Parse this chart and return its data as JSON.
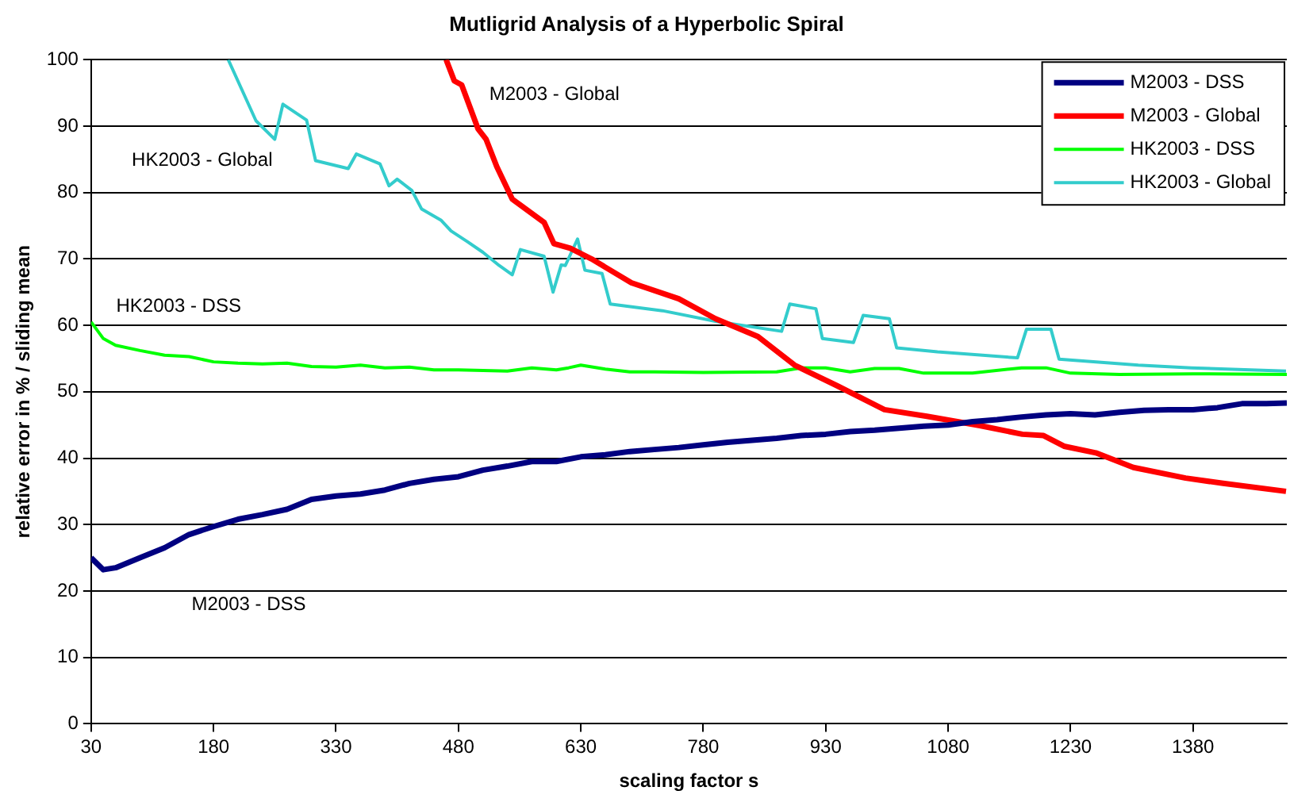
{
  "chart_data": {
    "type": "line",
    "title": "Mutligrid Analysis of a Hyperbolic Spiral",
    "xlabel": "scaling factor s",
    "ylabel": "relative error in % / sliding mean",
    "xlim": [
      30,
      1495
    ],
    "xticks": [
      30,
      180,
      330,
      480,
      630,
      780,
      930,
      1080,
      1230,
      1380
    ],
    "ylim": [
      0,
      100
    ],
    "yticks": [
      0,
      10,
      20,
      30,
      40,
      50,
      60,
      70,
      80,
      90,
      100
    ],
    "grid": "y",
    "legend": "top right",
    "marker": "none",
    "line_style": "solid",
    "annotations": [
      "M2003 - Global",
      "HK2003 - Global",
      "HK2003 - DSS",
      "M2003 - DSS"
    ],
    "series": [
      {
        "name": "M2003 - DSS",
        "color": "#000080",
        "x": [
          30,
          45,
          60,
          90,
          120,
          150,
          180,
          210,
          240,
          270,
          300,
          330,
          360,
          390,
          420,
          450,
          480,
          510,
          540,
          570,
          600,
          630,
          660,
          690,
          720,
          750,
          780,
          810,
          840,
          870,
          900,
          930,
          960,
          990,
          1020,
          1050,
          1080,
          1110,
          1140,
          1170,
          1200,
          1230,
          1260,
          1290,
          1320,
          1350,
          1380,
          1410,
          1440,
          1470,
          1495
        ],
        "values": [
          25,
          23.2,
          23.5,
          25,
          26.5,
          28.5,
          29.7,
          30.8,
          31.5,
          32.3,
          33.8,
          34.3,
          34.6,
          35.2,
          36.2,
          36.8,
          37.2,
          38.2,
          38.8,
          39.5,
          39.5,
          40.2,
          40.5,
          41,
          41.3,
          41.6,
          42,
          42.4,
          42.7,
          43,
          43.4,
          43.6,
          44,
          44.2,
          44.5,
          44.8,
          45,
          45.5,
          45.8,
          46.2,
          46.5,
          46.7,
          46.5,
          46.9,
          47.2,
          47.3,
          47.3,
          47.6,
          48.2,
          48.2,
          48.3
        ]
      },
      {
        "name": "M2003 - Global",
        "color": "#ff0000",
        "x": [
          465,
          475,
          484,
          504,
          514,
          527,
          546,
          585,
          597,
          617,
          643,
          692,
          750,
          795,
          847,
          892,
          944,
          1002,
          1054,
          1119,
          1171,
          1197,
          1222,
          1261,
          1307,
          1371,
          1417,
          1494
        ],
        "values": [
          100,
          96.8,
          96.2,
          89.6,
          88,
          83.9,
          79,
          75.5,
          72.3,
          71.6,
          70,
          66.4,
          64,
          61,
          58.3,
          54,
          50.9,
          47.3,
          46.3,
          44.9,
          43.6,
          43.4,
          41.8,
          40.8,
          38.6,
          37,
          36.2,
          35
        ]
      },
      {
        "name": "HK2003 - DSS",
        "color": "#00ff00",
        "x": [
          30,
          45,
          60,
          90,
          120,
          150,
          180,
          210,
          240,
          270,
          300,
          330,
          360,
          390,
          420,
          450,
          480,
          510,
          540,
          570,
          600,
          615,
          630,
          660,
          690,
          720,
          780,
          870,
          900,
          930,
          960,
          990,
          1020,
          1050,
          1110,
          1170,
          1200,
          1230,
          1290,
          1380,
          1495
        ],
        "values": [
          60.5,
          58,
          57,
          56.2,
          55.5,
          55.3,
          54.5,
          54.3,
          54.2,
          54.3,
          53.8,
          53.7,
          54,
          53.6,
          53.7,
          53.3,
          53.3,
          53.2,
          53.1,
          53.6,
          53.3,
          53.6,
          54,
          53.4,
          53,
          53,
          52.9,
          53,
          53.6,
          53.6,
          53,
          53.5,
          53.5,
          52.8,
          52.8,
          53.6,
          53.6,
          52.8,
          52.6,
          52.7,
          52.6
        ]
      },
      {
        "name": "HK2003 - Global",
        "color": "#33cccc",
        "x": [
          198,
          232,
          255,
          265,
          294,
          305,
          345,
          355,
          384,
          395,
          405,
          423,
          435,
          459,
          471,
          491,
          510,
          530,
          546,
          556,
          585,
          596,
          606,
          611,
          626,
          635,
          656,
          666,
          730,
          795,
          876,
          886,
          918,
          926,
          964,
          976,
          1008,
          1017,
          1067,
          1165,
          1176,
          1206,
          1216,
          1313,
          1378,
          1494
        ],
        "values": [
          100,
          90.8,
          88,
          93.3,
          90.9,
          84.8,
          83.6,
          85.8,
          84.3,
          81,
          82,
          80.3,
          77.5,
          75.8,
          74.2,
          72.6,
          71,
          69,
          67.6,
          71.4,
          70.4,
          65,
          69.1,
          69,
          73,
          68.3,
          67.8,
          63.2,
          62.2,
          60.6,
          59.1,
          63.2,
          62.5,
          58,
          57.4,
          61.5,
          61,
          56.6,
          56,
          55.1,
          59.4,
          59.4,
          54.9,
          54,
          53.6,
          53.1
        ]
      }
    ]
  }
}
